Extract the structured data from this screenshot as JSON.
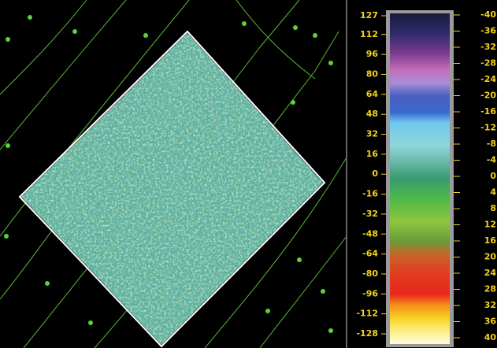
{
  "colorbar": {
    "left_ticks": [
      127,
      112,
      96,
      80,
      64,
      48,
      32,
      16,
      0,
      -16,
      -32,
      -48,
      -64,
      -80,
      -96,
      -112,
      -128
    ],
    "right_ticks": [
      -40,
      -36,
      -32,
      -28,
      -24,
      -20,
      -16,
      -12,
      -8,
      -4,
      0,
      4,
      8,
      12,
      16,
      20,
      24,
      28,
      32,
      36,
      40
    ]
  }
}
